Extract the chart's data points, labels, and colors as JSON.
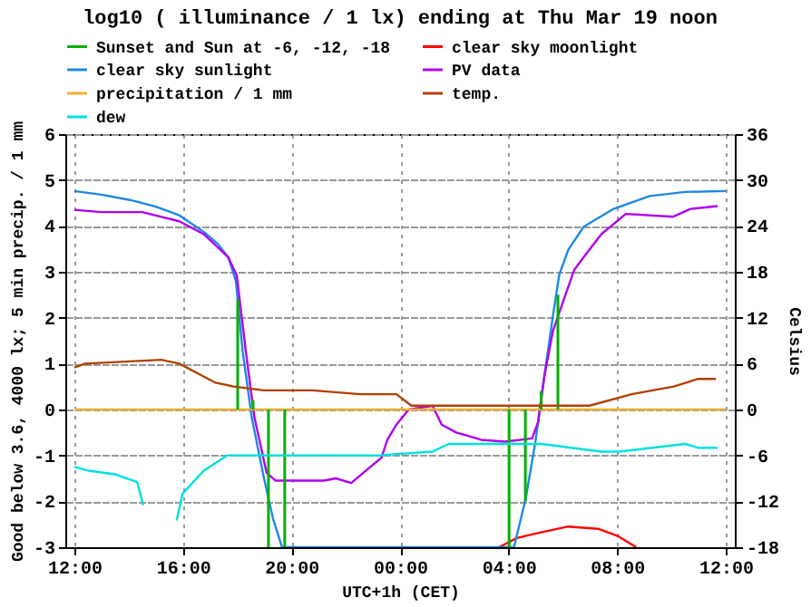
{
  "chart_data": {
    "type": "line",
    "title": "log10 ( illuminance / 1 lx) ending at Thu Mar 19 noon",
    "xlabel": "UTC+1h (CET)",
    "ylabel": "Good below 3.6, 4000 lx; 5 min precip. / 1 mm",
    "y2label": "Celsius",
    "xlim": [
      "--03-18T12:00",
      "--03-19T12:00"
    ],
    "xticks": [
      {
        "value": "--03-18T12:00",
        "label": "12:00"
      },
      {
        "value": "--03-18T16:00",
        "label": "16:00"
      },
      {
        "value": "--03-18T20:00",
        "label": "20:00"
      },
      {
        "value": "--03-19T00:00",
        "label": "00:00"
      },
      {
        "value": "--03-19T04:00",
        "label": "04:00"
      },
      {
        "value": "--03-19T08:00",
        "label": "08:00"
      },
      {
        "value": "--03-19T12:00",
        "label": "12:00"
      }
    ],
    "ylim": [
      -3,
      6
    ],
    "yticks": [
      -3,
      -2,
      -1,
      0,
      1,
      2,
      3,
      4,
      5,
      6
    ],
    "y2lim": [
      -18,
      36
    ],
    "y2ticks": [
      -18,
      -12,
      -6,
      0,
      6,
      12,
      18,
      24,
      30,
      36
    ],
    "grid": true,
    "legend": "top",
    "series": [
      {
        "name": "Sunset and Sun at -6, -12, -18",
        "color": "#00b000",
        "type": "bar",
        "x": [
          "--03-18T18:01",
          "--03-18T18:35",
          "--03-18T19:09",
          "--03-18T19:45",
          "--03-19T04:01",
          "--03-19T04:37",
          "--03-19T05:12",
          "--03-19T05:49"
        ],
        "values": [
          2.4,
          0.2,
          -3,
          -3,
          -3,
          -2,
          0.4,
          2.5
        ]
      },
      {
        "name": "clear sky moonlight",
        "color": "#ff0000",
        "x": [
          "--03-19T03:39",
          "--03-19T04:18",
          "--03-19T05:00",
          "--03-19T06:12",
          "--03-19T07:18",
          "--03-19T08:00",
          "--03-19T08:42"
        ],
        "values": [
          -3,
          -2.8,
          -2.7,
          -2.55,
          -2.6,
          -2.75,
          -3
        ]
      },
      {
        "name": "clear sky sunlight",
        "color": "#1e88e5",
        "x": [
          "--03-18T12:00",
          "--03-18T13:00",
          "--03-18T14:05",
          "--03-18T15:00",
          "--03-18T15:52",
          "--03-18T16:46",
          "--03-18T17:18",
          "--03-18T17:41",
          "--03-18T17:57",
          "--03-18T18:12",
          "--03-18T18:32",
          "--03-18T18:59",
          "--03-18T19:19",
          "--03-18T19:39",
          "--03-19T04:12",
          "--03-19T04:38",
          "--03-19T04:59",
          "--03-19T05:19",
          "--03-19T05:38",
          "--03-19T05:52",
          "--03-19T06:12",
          "--03-19T06:46",
          "--03-19T07:52",
          "--03-19T09:12",
          "--03-19T10:30",
          "--03-19T12:00"
        ],
        "values": [
          4.76,
          4.68,
          4.56,
          4.42,
          4.23,
          3.87,
          3.6,
          3.3,
          2.8,
          1.27,
          -0.17,
          -1.49,
          -2.37,
          -3,
          -3,
          -1.93,
          -0.72,
          0.72,
          2.04,
          2.94,
          3.48,
          3.98,
          4.37,
          4.65,
          4.74,
          4.76
        ]
      },
      {
        "name": "PV data",
        "color": "#b000f0",
        "x": [
          "--03-18T12:00",
          "--03-18T13:00",
          "--03-18T14:30",
          "--03-18T15:52",
          "--03-18T16:46",
          "--03-18T17:40",
          "--03-18T17:59",
          "--03-18T18:19",
          "--03-18T18:38",
          "--03-18T19:05",
          "--03-18T19:25",
          "--03-18T21:12",
          "--03-18T21:38",
          "--03-18T22:12",
          "--03-18T22:46",
          "--03-18T23:19",
          "--03-18T23:32",
          "--03-18T23:52",
          "--03-19T00:19",
          "--03-19T01:12",
          "--03-19T01:32",
          "--03-19T02:04",
          "--03-19T02:59",
          "--03-19T03:52",
          "--03-19T04:52",
          "--03-19T05:05",
          "--03-19T05:19",
          "--03-19T05:38",
          "--03-19T06:05",
          "--03-19T06:25",
          "--03-19T06:46",
          "--03-19T07:25",
          "--03-19T08:19",
          "--03-19T10:04",
          "--03-19T10:42",
          "--03-19T11:42"
        ],
        "values": [
          4.35,
          4.3,
          4.3,
          4.1,
          3.82,
          3.32,
          2.92,
          1.27,
          -0.17,
          -1.38,
          -1.55,
          -1.55,
          -1.5,
          -1.6,
          -1.32,
          -1.05,
          -0.66,
          -0.33,
          0,
          0.08,
          -0.33,
          -0.5,
          -0.66,
          -0.7,
          -0.63,
          -0.28,
          0.73,
          1.71,
          2.48,
          3.04,
          3.32,
          3.82,
          4.26,
          4.2,
          4.37,
          4.43
        ]
      },
      {
        "name": "precipitation / 1 mm",
        "color": "#f0b030",
        "x": [
          "--03-18T12:00",
          "--03-19T12:00"
        ],
        "values": [
          0,
          0
        ]
      },
      {
        "name": "temp.",
        "color": "#b04000",
        "axis": "y2",
        "x": [
          "--03-18T12:00",
          "--03-18T12:24",
          "--03-18T15:12",
          "--03-18T15:52",
          "--03-18T17:12",
          "--03-18T17:52",
          "--03-18T18:59",
          "--03-18T20:46",
          "--03-18T22:32",
          "--03-18T23:52",
          "--03-19T00:25",
          "--03-19T05:12",
          "--03-19T06:59",
          "--03-19T08:32",
          "--03-19T10:05",
          "--03-19T10:59",
          "--03-19T11:38"
        ],
        "values": [
          5.5,
          6,
          6.5,
          6,
          3.5,
          3,
          2.5,
          2.5,
          2,
          2,
          0.5,
          0.5,
          0.5,
          2,
          3,
          4,
          4
        ]
      },
      {
        "name": "dew",
        "color": "#00e0e0",
        "axis": "y2",
        "x": [
          "--03-18T12:00",
          "--03-18T12:32",
          "--03-18T13:32",
          "--03-18T14:19",
          "--03-18T14:32",
          "--03-18T15:06",
          "--03-18T15:46",
          "--03-18T15:59",
          "--03-18T16:46",
          "--03-18T17:38",
          "--03-18T18:30",
          "--03-18T23:12",
          "--03-19T01:12",
          "--03-19T01:47",
          "--03-19T05:12",
          "--03-19T07:25",
          "--03-19T08:05",
          "--03-19T10:30",
          "--03-19T10:59",
          "--03-19T11:42"
        ],
        "values": [
          -7.5,
          -8,
          -8.5,
          -9.5,
          -12.5,
          null,
          -14.5,
          -11,
          -8,
          -6,
          -6,
          -6,
          -5.5,
          -4.5,
          -4.5,
          -5.5,
          -5.5,
          -4.5,
          -5,
          -5
        ]
      }
    ]
  }
}
